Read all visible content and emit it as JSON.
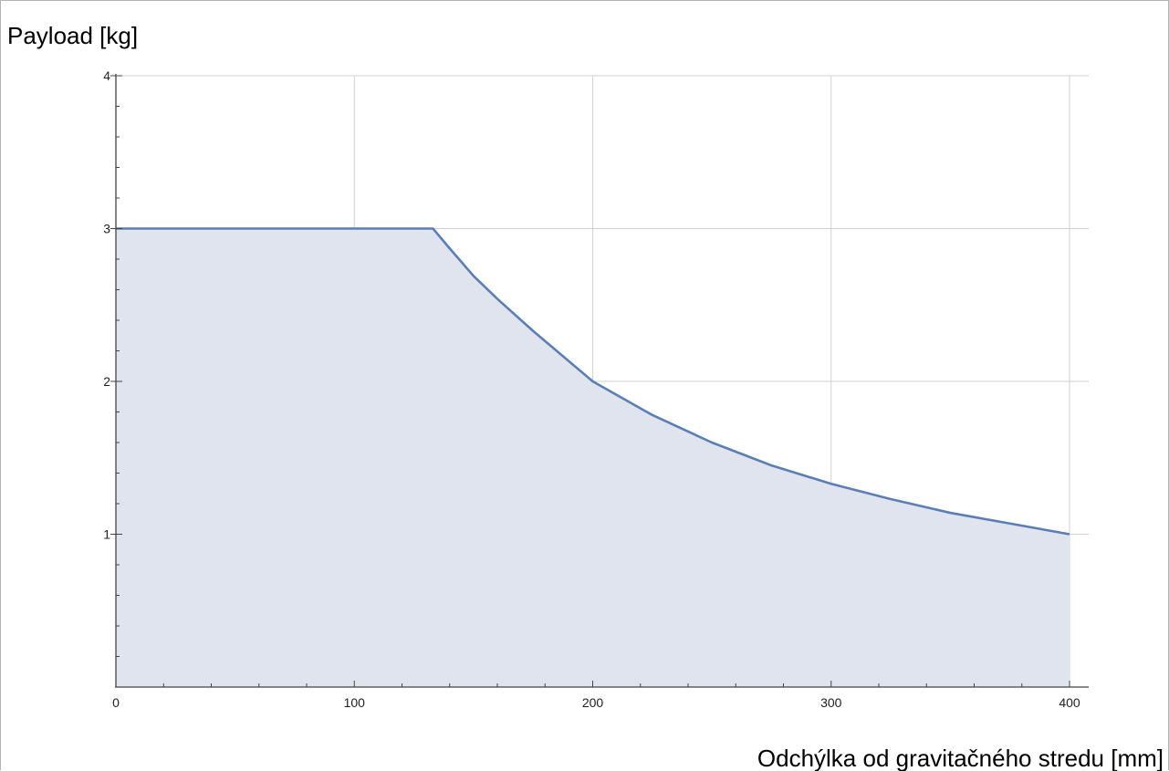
{
  "chart_data": {
    "type": "area",
    "ylabel": "Payload [kg]",
    "xlabel": "Odchýlka od gravitačného stredu [mm]",
    "xlim": [
      0,
      400
    ],
    "ylim": [
      0,
      4
    ],
    "x_ticks": [
      "0",
      "100",
      "200",
      "300",
      "400"
    ],
    "y_ticks": [
      "1",
      "2",
      "3",
      "4"
    ],
    "grid": true,
    "series": [
      {
        "x": [
          0,
          50,
          100,
          133,
          140,
          150,
          160,
          175,
          200,
          225,
          250,
          275,
          300,
          325,
          350,
          375,
          400
        ],
        "values": [
          3.0,
          3.0,
          3.0,
          3.0,
          2.87,
          2.69,
          2.54,
          2.33,
          2.0,
          1.78,
          1.6,
          1.45,
          1.33,
          1.23,
          1.14,
          1.07,
          1.0
        ]
      }
    ],
    "colors": {
      "line": "#5b7fb5",
      "fill": "#dfe4ef",
      "grid": "#d2d2d2",
      "axis": "#444444"
    }
  }
}
